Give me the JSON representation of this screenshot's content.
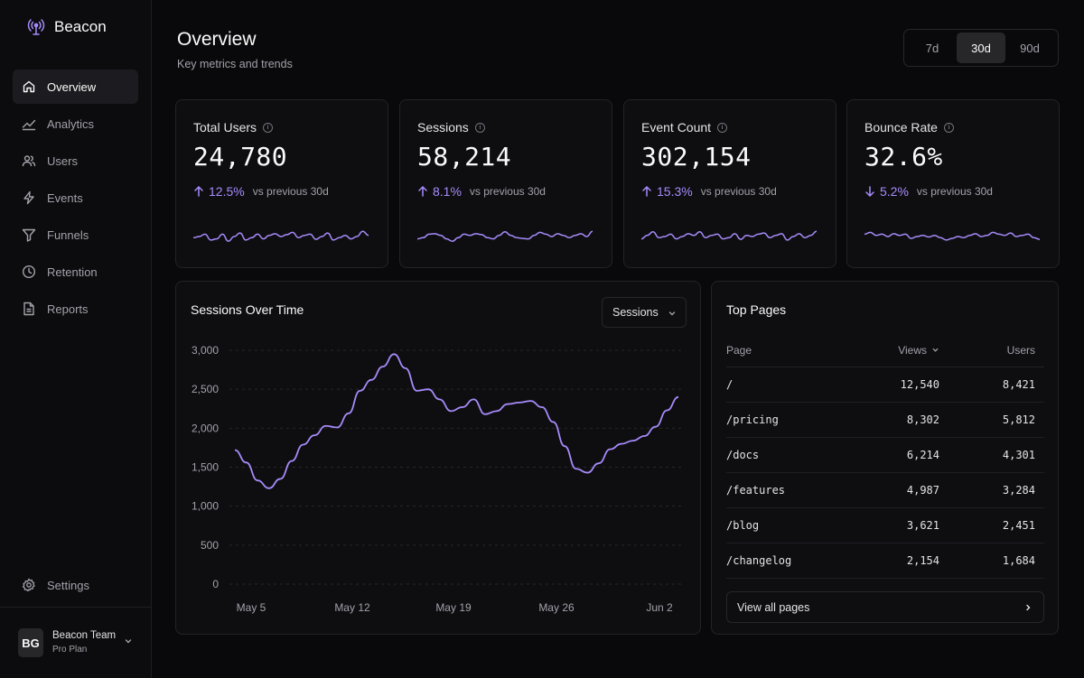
{
  "app": {
    "name": "Beacon"
  },
  "sidebar": {
    "items": [
      {
        "label": "Overview",
        "icon": "home-icon"
      },
      {
        "label": "Analytics",
        "icon": "trend-icon"
      },
      {
        "label": "Users",
        "icon": "users-icon"
      },
      {
        "label": "Events",
        "icon": "bolt-icon"
      },
      {
        "label": "Funnels",
        "icon": "funnel-icon"
      },
      {
        "label": "Retention",
        "icon": "clock-icon"
      },
      {
        "label": "Reports",
        "icon": "file-icon"
      }
    ],
    "settings_label": "Settings",
    "user": {
      "initials": "BG",
      "name": "Beacon Team",
      "plan": "Pro Plan"
    }
  },
  "header": {
    "title": "Overview",
    "subtitle": "Key metrics and trends",
    "ranges": [
      "7d",
      "30d",
      "90d"
    ],
    "active_range": "30d"
  },
  "kpis": [
    {
      "label": "Total Users",
      "value": "24,780",
      "delta": "12.5%",
      "direction": "up",
      "vs": "vs previous 30d",
      "spark": [
        0.45,
        0.5,
        0.6,
        0.35,
        0.4,
        0.6,
        0.3,
        0.5,
        0.65,
        0.35,
        0.45,
        0.6,
        0.4,
        0.55,
        0.62,
        0.5,
        0.58,
        0.68,
        0.45,
        0.55,
        0.6,
        0.38,
        0.5,
        0.65,
        0.35,
        0.45,
        0.55,
        0.4,
        0.5,
        0.72,
        0.55
      ]
    },
    {
      "label": "Sessions",
      "value": "58,214",
      "delta": "8.1%",
      "direction": "up",
      "vs": "vs previous 30d",
      "spark": [
        0.4,
        0.45,
        0.6,
        0.62,
        0.55,
        0.4,
        0.3,
        0.45,
        0.6,
        0.55,
        0.62,
        0.58,
        0.45,
        0.4,
        0.55,
        0.7,
        0.55,
        0.45,
        0.42,
        0.4,
        0.55,
        0.68,
        0.6,
        0.5,
        0.62,
        0.55,
        0.45,
        0.55,
        0.62,
        0.5,
        0.72
      ]
    },
    {
      "label": "Event Count",
      "value": "302,154",
      "delta": "15.3%",
      "direction": "up",
      "vs": "vs previous 30d",
      "spark": [
        0.4,
        0.55,
        0.7,
        0.45,
        0.5,
        0.6,
        0.4,
        0.5,
        0.62,
        0.55,
        0.7,
        0.45,
        0.55,
        0.6,
        0.4,
        0.45,
        0.62,
        0.38,
        0.55,
        0.5,
        0.6,
        0.65,
        0.45,
        0.55,
        0.62,
        0.35,
        0.5,
        0.62,
        0.45,
        0.55,
        0.72
      ]
    },
    {
      "label": "Bounce Rate",
      "value": "32.6%",
      "delta": "5.2%",
      "direction": "down",
      "vs": "vs previous 30d",
      "spark": [
        0.6,
        0.68,
        0.55,
        0.6,
        0.5,
        0.62,
        0.55,
        0.6,
        0.42,
        0.5,
        0.55,
        0.48,
        0.55,
        0.45,
        0.35,
        0.42,
        0.5,
        0.45,
        0.55,
        0.62,
        0.5,
        0.55,
        0.68,
        0.6,
        0.55,
        0.65,
        0.5,
        0.55,
        0.6,
        0.45,
        0.38
      ]
    }
  ],
  "sessions_chart": {
    "title": "Sessions Over Time",
    "metric_select": "Sessions",
    "chart_data": {
      "type": "line",
      "y_ticks": [
        "3,000",
        "2,500",
        "2,000",
        "1,500",
        "1,000",
        "500",
        "0"
      ],
      "x_ticks": [
        "May 5",
        "May 12",
        "May 19",
        "May 26",
        "Jun 2"
      ],
      "ylim": [
        0,
        3000
      ],
      "grid": true,
      "series": [
        {
          "values": [
            1720,
            1560,
            1330,
            1230,
            1350,
            1580,
            1790,
            1910,
            2030,
            2010,
            2190,
            2480,
            2620,
            2790,
            2950,
            2770,
            2480,
            2500,
            2370,
            2220,
            2270,
            2370,
            2180,
            2220,
            2310,
            2330,
            2350,
            2270,
            2080,
            1770,
            1480,
            1430,
            1550,
            1730,
            1800,
            1840,
            1900,
            2020,
            2230,
            2400
          ]
        }
      ]
    }
  },
  "top_pages": {
    "title": "Top Pages",
    "columns": {
      "page": "Page",
      "views": "Views",
      "users": "Users"
    },
    "rows": [
      {
        "page": "/",
        "views": "12,540",
        "users": "8,421"
      },
      {
        "page": "/pricing",
        "views": "8,302",
        "users": "5,812"
      },
      {
        "page": "/docs",
        "views": "6,214",
        "users": "4,301"
      },
      {
        "page": "/features",
        "views": "4,987",
        "users": "3,284"
      },
      {
        "page": "/blog",
        "views": "3,621",
        "users": "2,451"
      },
      {
        "page": "/changelog",
        "views": "2,154",
        "users": "1,684"
      }
    ],
    "view_all_label": "View all pages"
  },
  "colors": {
    "accent": "#a78bfa",
    "background": "#09090b",
    "card": "#0e0e11",
    "border": "#232327"
  }
}
